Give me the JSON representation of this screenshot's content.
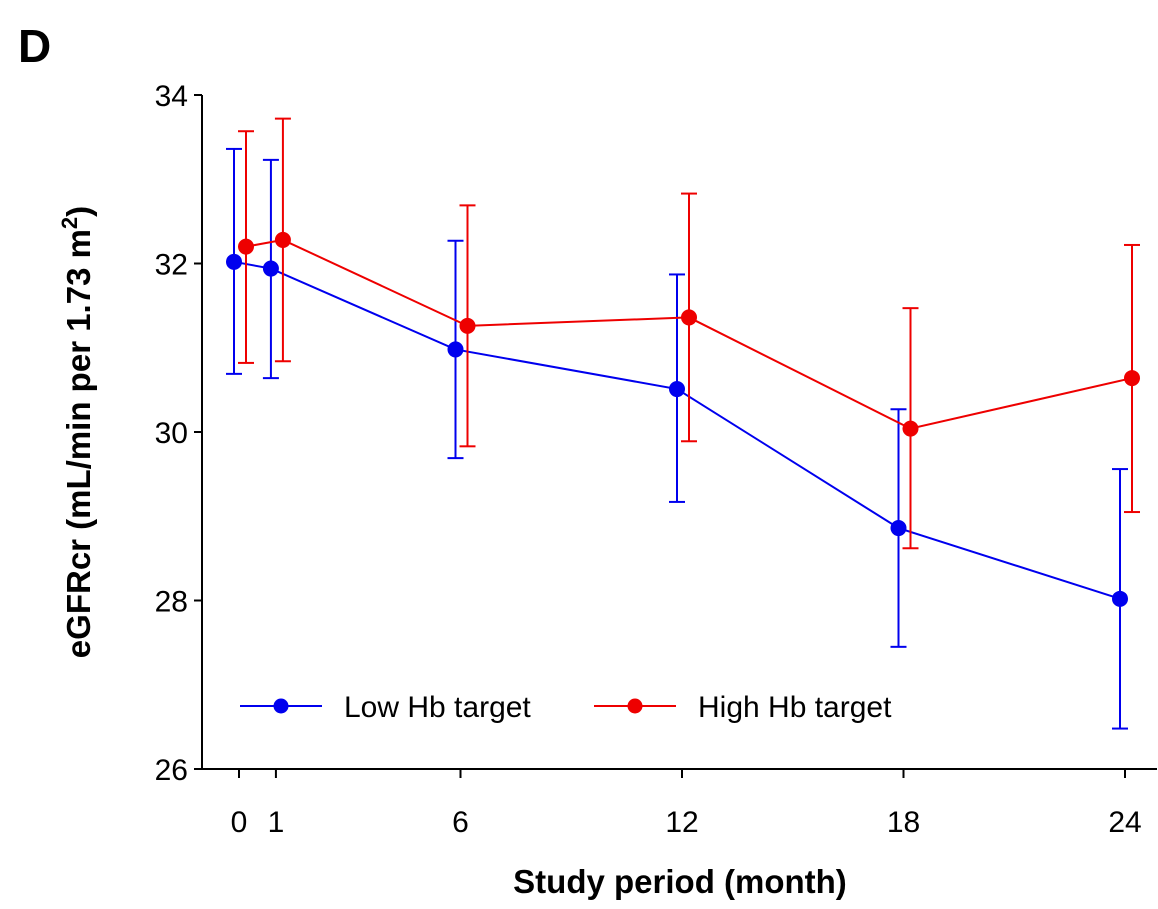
{
  "panel_label": "D",
  "chart_data": {
    "type": "line",
    "title": "",
    "xlabel": "Study period (month)",
    "ylabel_main": "eGFRcr (mL/min per 1.73 m",
    "ylabel_sup": "2",
    "ylabel_close": ")",
    "ylim": [
      26,
      34
    ],
    "y_ticks": [
      26,
      28,
      30,
      32,
      34
    ],
    "x_ticks": [
      0,
      1,
      6,
      12,
      18,
      24
    ],
    "grid": false,
    "legend_position": "bottom-left",
    "series": [
      {
        "name": "Low Hb target",
        "color": "#0000ee",
        "x": [
          0,
          1,
          6,
          12,
          18,
          24
        ],
        "y": [
          32.02,
          31.94,
          30.98,
          30.51,
          28.86,
          28.02
        ],
        "err_lower": [
          30.69,
          30.64,
          29.69,
          29.17,
          27.45,
          26.48
        ],
        "err_upper": [
          33.36,
          33.23,
          32.27,
          31.87,
          30.27,
          29.56
        ]
      },
      {
        "name": "High Hb target",
        "color": "#ee0000",
        "x": [
          0,
          1,
          6,
          12,
          18,
          24
        ],
        "y": [
          32.2,
          32.28,
          31.26,
          31.36,
          30.04,
          30.64
        ],
        "err_lower": [
          30.82,
          30.84,
          29.83,
          29.89,
          28.62,
          29.05
        ],
        "err_upper": [
          33.57,
          33.72,
          32.69,
          32.83,
          31.47,
          32.22
        ]
      }
    ]
  }
}
